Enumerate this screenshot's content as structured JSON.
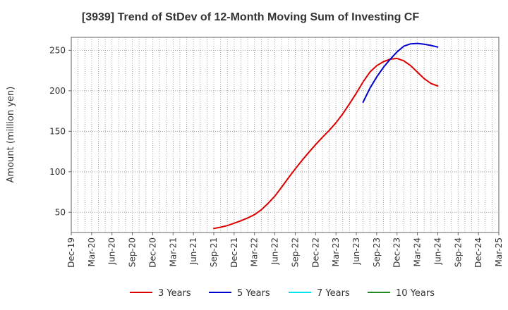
{
  "chart_data": {
    "type": "line",
    "title": "[3939]  Trend of StDev of 12-Month Moving Sum of Investing CF",
    "xlabel": "",
    "ylabel": "Amount (million yen)",
    "x_ticks": [
      "Dec-19",
      "Mar-20",
      "Jun-20",
      "Sep-20",
      "Dec-20",
      "Mar-21",
      "Jun-21",
      "Sep-21",
      "Dec-21",
      "Mar-22",
      "Jun-22",
      "Sep-22",
      "Dec-22",
      "Mar-23",
      "Jun-23",
      "Sep-23",
      "Dec-23",
      "Mar-24",
      "Jun-24",
      "Sep-24",
      "Dec-24",
      "Mar-25"
    ],
    "y_ticks": [
      50,
      100,
      150,
      200,
      250
    ],
    "ylim": [
      25,
      266
    ],
    "grid": true,
    "legend_position": "bottom",
    "series": [
      {
        "name": "3 Years",
        "color": "#dd0000",
        "points": [
          {
            "x": "Sep-21",
            "y": 30
          },
          {
            "x": "Oct-21",
            "y": 31.5
          },
          {
            "x": "Nov-21",
            "y": 33.5
          },
          {
            "x": "Dec-21",
            "y": 36.5
          },
          {
            "x": "Jan-22",
            "y": 39.5
          },
          {
            "x": "Feb-22",
            "y": 43
          },
          {
            "x": "Mar-22",
            "y": 47
          },
          {
            "x": "Apr-22",
            "y": 53
          },
          {
            "x": "May-22",
            "y": 61
          },
          {
            "x": "Jun-22",
            "y": 70
          },
          {
            "x": "Jul-22",
            "y": 81
          },
          {
            "x": "Aug-22",
            "y": 92.5
          },
          {
            "x": "Sep-22",
            "y": 103.5
          },
          {
            "x": "Oct-22",
            "y": 114
          },
          {
            "x": "Nov-22",
            "y": 124
          },
          {
            "x": "Dec-22",
            "y": 133.5
          },
          {
            "x": "Jan-23",
            "y": 142.5
          },
          {
            "x": "Feb-23",
            "y": 151
          },
          {
            "x": "Mar-23",
            "y": 160.5
          },
          {
            "x": "Apr-23",
            "y": 171.5
          },
          {
            "x": "May-23",
            "y": 184
          },
          {
            "x": "Jun-23",
            "y": 197
          },
          {
            "x": "Jul-23",
            "y": 211
          },
          {
            "x": "Aug-23",
            "y": 223
          },
          {
            "x": "Sep-23",
            "y": 231
          },
          {
            "x": "Oct-23",
            "y": 236
          },
          {
            "x": "Nov-23",
            "y": 239
          },
          {
            "x": "Dec-23",
            "y": 240
          },
          {
            "x": "Jan-24",
            "y": 237
          },
          {
            "x": "Feb-24",
            "y": 231
          },
          {
            "x": "Mar-24",
            "y": 223
          },
          {
            "x": "Apr-24",
            "y": 215
          },
          {
            "x": "May-24",
            "y": 209
          },
          {
            "x": "Jun-24",
            "y": 206
          }
        ]
      },
      {
        "name": "5 Years",
        "color": "#0000cc",
        "points": [
          {
            "x": "Jul-23",
            "y": 186
          },
          {
            "x": "Aug-23",
            "y": 203
          },
          {
            "x": "Sep-23",
            "y": 217
          },
          {
            "x": "Oct-23",
            "y": 229
          },
          {
            "x": "Nov-23",
            "y": 239
          },
          {
            "x": "Dec-23",
            "y": 248
          },
          {
            "x": "Jan-24",
            "y": 255
          },
          {
            "x": "Feb-24",
            "y": 258
          },
          {
            "x": "Mar-24",
            "y": 258.5
          },
          {
            "x": "Apr-24",
            "y": 257.5
          },
          {
            "x": "May-24",
            "y": 256
          },
          {
            "x": "Jun-24",
            "y": 254
          }
        ]
      },
      {
        "name": "7 Years",
        "color": "#00e5ee",
        "points": []
      },
      {
        "name": "10 Years",
        "color": "#228b22",
        "points": []
      }
    ]
  }
}
